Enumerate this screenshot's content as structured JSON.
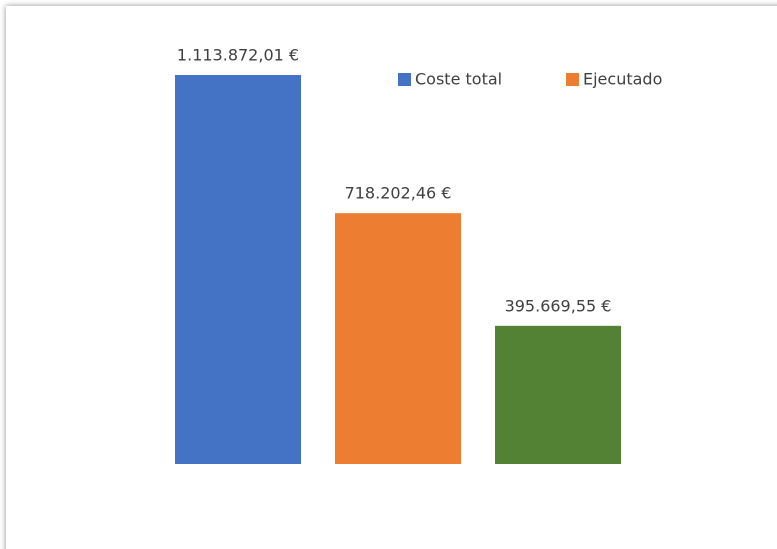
{
  "chart_data": {
    "type": "bar",
    "values": [
      1113872.01,
      718202.46,
      395669.55
    ],
    "value_labels": [
      "1.113.872,01 €",
      "718.202,46 €",
      "395.669,55 €"
    ],
    "colors": [
      "#4472c4",
      "#ed7d31",
      "#548235"
    ],
    "legend": [
      {
        "name": "Coste total",
        "color": "#4472c4"
      },
      {
        "name": "Ejecutado",
        "color": "#ed7d31"
      }
    ]
  }
}
